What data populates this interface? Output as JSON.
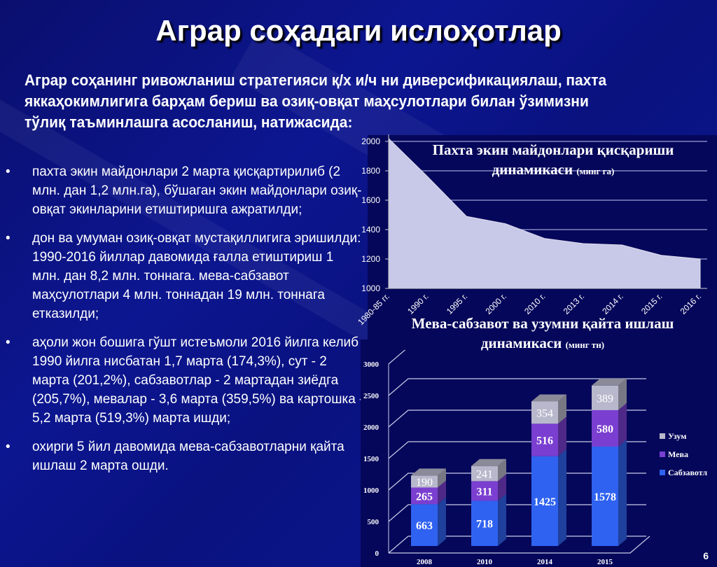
{
  "slide": {
    "title": "Аграр соҳадаги ислоҳотлар",
    "intro": "Аграр соҳанинг ривожланиш стратегияси қ/х и/ч ни диверсификациялаш, пахта яккаҳокимлигига барҳам бериш ва озиқ-овқат маҳсулотлари билан ўзимизни тўлиқ таъминлашга асосланиш, натижасида:",
    "bullet_char": "•",
    "bullets": [
      "пахта экин майдонлари 2 марта қисқартирилиб (2 млн. дан 1,2 млн.га), бўшаган экин майдонлари озиқ-овқат экинларини етиштиришга  ажратилди;",
      "дон ва умуман озиқ-овқат мустақиллигига эришилди: 1990-2016 йиллар давомида ғалла етиштириш 1 млн. дан 8,2 млн. тоннага. мева-сабзавот маҳсулотлари 4 млн. тоннадан 19 млн. тоннага етказилди;",
      "аҳоли жон бошига гўшт истеъмоли 2016 йилга келиб 1990 йилга нисбатан 1,7 марта (174,3%), сут -  2 марта (201,2%), сабзавотлар -  2 мартадан зиёдга (205,7%), мевалар -  3,6 марта (359,5%) ва картошка  -  5,2 марта (519,3%) марта ишди;",
      "охирги 5 йил давомида мева-сабзавотларни қайта ишлаш 2 марта ошди."
    ],
    "slide_number": "6"
  },
  "chart_data": [
    {
      "type": "area",
      "title": "Пахта экин майдонлари қисқариши динамикаси",
      "unit": "(минг га)",
      "categories": [
        "1980-85 гг.",
        "1990 г.",
        "1995 г.",
        "2000 г.",
        "2010 г.",
        "2013 г.",
        "2014 г.",
        "2015 г.",
        "2016 г."
      ],
      "values": [
        2020,
        1760,
        1490,
        1440,
        1340,
        1305,
        1295,
        1225,
        1200
      ],
      "yticks": [
        1000,
        1200,
        1400,
        1600,
        1800,
        2000
      ],
      "ylim": [
        1000,
        2000
      ],
      "grid": true,
      "fill_color": "#c8c8e8"
    },
    {
      "type": "bar",
      "stacked": true,
      "title": "Мева-сабзавот ва узумни қайта ишлаш динамикаси",
      "unit": "(минг тн)",
      "categories": [
        "2008",
        "2010",
        "2014",
        "2015"
      ],
      "yticks": [
        0,
        500,
        1000,
        1500,
        2000,
        2500,
        3000
      ],
      "ylim": [
        0,
        3000
      ],
      "series": [
        {
          "name": "Сабзавотл",
          "values": [
            663,
            718,
            1425,
            1578
          ],
          "color": "#2f62f0"
        },
        {
          "name": "Мева",
          "values": [
            265,
            311,
            516,
            580
          ],
          "color": "#7a3fd0"
        },
        {
          "name": "Узум",
          "values": [
            190,
            241,
            354,
            389
          ],
          "color": "#b8b8cc"
        }
      ],
      "legend": [
        "Узум",
        "Мева",
        "Сабзавотл"
      ],
      "legend_position": "right"
    }
  ]
}
